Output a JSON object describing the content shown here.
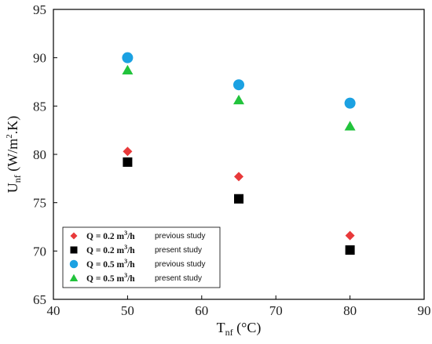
{
  "chart_data": {
    "type": "scatter",
    "xlabel": {
      "main": "T",
      "sub": "nf",
      "rest": " (°C)"
    },
    "ylabel": {
      "main": "U",
      "sub": "nf",
      "rest": " (W/m",
      "sup": "2",
      "tail": ".K)"
    },
    "xlim": [
      40,
      90
    ],
    "ylim": [
      65,
      95
    ],
    "xticks": [
      40,
      50,
      60,
      70,
      80,
      90
    ],
    "yticks": [
      65,
      70,
      75,
      80,
      85,
      90,
      95
    ],
    "grid": false,
    "legend_position": "bottom-left",
    "series": [
      {
        "name": "Q = 0.2 m³/h previous study",
        "legend_main": "Q = 0.2 m",
        "legend_sup": "3",
        "legend_unit": "/h",
        "legend_note": "previous study",
        "marker": "diamond",
        "color": "#e8393a",
        "x": [
          50,
          65,
          80
        ],
        "y": [
          80.3,
          77.7,
          71.6
        ]
      },
      {
        "name": "Q = 0.2 m³/h present study",
        "legend_main": "Q = 0.2 m",
        "legend_sup": "3",
        "legend_unit": "/h",
        "legend_note": "present study",
        "marker": "square",
        "color": "#000000",
        "x": [
          50,
          65,
          80
        ],
        "y": [
          79.2,
          75.4,
          70.1
        ]
      },
      {
        "name": "Q = 0.5 m³/h previous study",
        "legend_main": "Q = 0.5 m",
        "legend_sup": "3",
        "legend_unit": "/h",
        "legend_note": "previous study",
        "marker": "circle",
        "color": "#1ba1e2",
        "x": [
          50,
          65,
          80
        ],
        "y": [
          90.0,
          87.2,
          85.3
        ]
      },
      {
        "name": "Q = 0.5 m³/h present study",
        "legend_main": "Q = 0.5 m",
        "legend_sup": "3",
        "legend_unit": "/h",
        "legend_note": "present study",
        "marker": "triangle",
        "color": "#22c33c",
        "x": [
          50,
          65,
          80
        ],
        "y": [
          88.7,
          85.6,
          82.9
        ]
      }
    ]
  }
}
